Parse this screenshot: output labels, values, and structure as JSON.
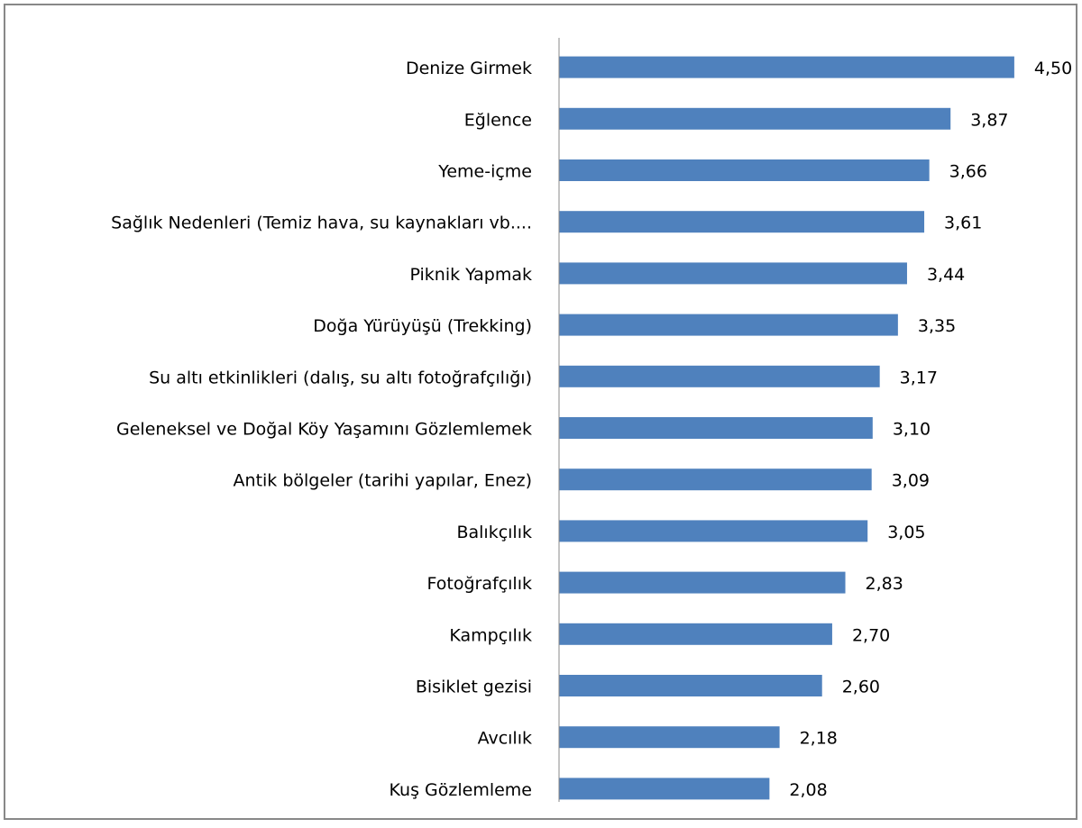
{
  "chart_data": {
    "type": "bar",
    "orientation": "horizontal",
    "categories": [
      "Denize Girmek",
      "Eğlence",
      "Yeme-içme",
      "Sağlık Nedenleri (Temiz hava, su kaynakları vb....",
      "Piknik Yapmak",
      "Doğa Yürüyüşü (Trekking)",
      "Su altı etkinlikleri (dalış, su altı fotoğrafçılığı)",
      "Geleneksel ve Doğal Köy Yaşamını Gözlemlemek",
      "Antik bölgeler (tarihi yapılar, Enez)",
      "Balıkçılık",
      "Fotoğrafçılık",
      "Kampçılık",
      "Bisiklet gezisi",
      "Avcılık",
      "Kuş Gözlemleme"
    ],
    "values": [
      4.5,
      3.87,
      3.66,
      3.61,
      3.44,
      3.35,
      3.17,
      3.1,
      3.09,
      3.05,
      2.83,
      2.7,
      2.6,
      2.18,
      2.08
    ],
    "value_labels": [
      "4,50",
      "3,87",
      "3,66",
      "3,61",
      "3,44",
      "3,35",
      "3,17",
      "3,10",
      "3,09",
      "3,05",
      "2,83",
      "2,70",
      "2,60",
      "2,18",
      "2,08"
    ],
    "color": "#4f81bd",
    "xlim": [
      0,
      5
    ]
  }
}
